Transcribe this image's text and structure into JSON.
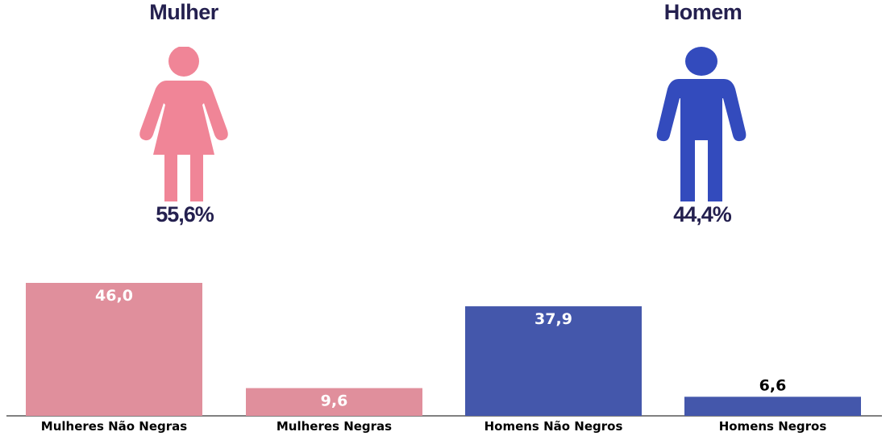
{
  "colors": {
    "title": "#24204f",
    "female_icon": "#f08597",
    "male_icon": "#334bbd",
    "female_bar": "#e08f9c",
    "male_bar": "#4457ab"
  },
  "genders": {
    "female": {
      "title": "Mulher",
      "percent": "55,6%",
      "icon": "woman-icon"
    },
    "male": {
      "title": "Homem",
      "percent": "44,4%",
      "icon": "man-icon"
    }
  },
  "chart_data": {
    "type": "bar",
    "categories": [
      "Mulheres Não Negras",
      "Mulheres Negras",
      "Homens Não Negros",
      "Homens Negros"
    ],
    "values": [
      46.0,
      9.6,
      37.9,
      6.6
    ],
    "value_labels": [
      "46,0",
      "9,6",
      "37,9",
      "6,6"
    ],
    "bar_colors": [
      "#e08f9c",
      "#e08f9c",
      "#4457ab",
      "#4457ab"
    ],
    "ylim": [
      0,
      46.0
    ],
    "grid": false,
    "title": "",
    "xlabel": "",
    "ylabel": ""
  }
}
